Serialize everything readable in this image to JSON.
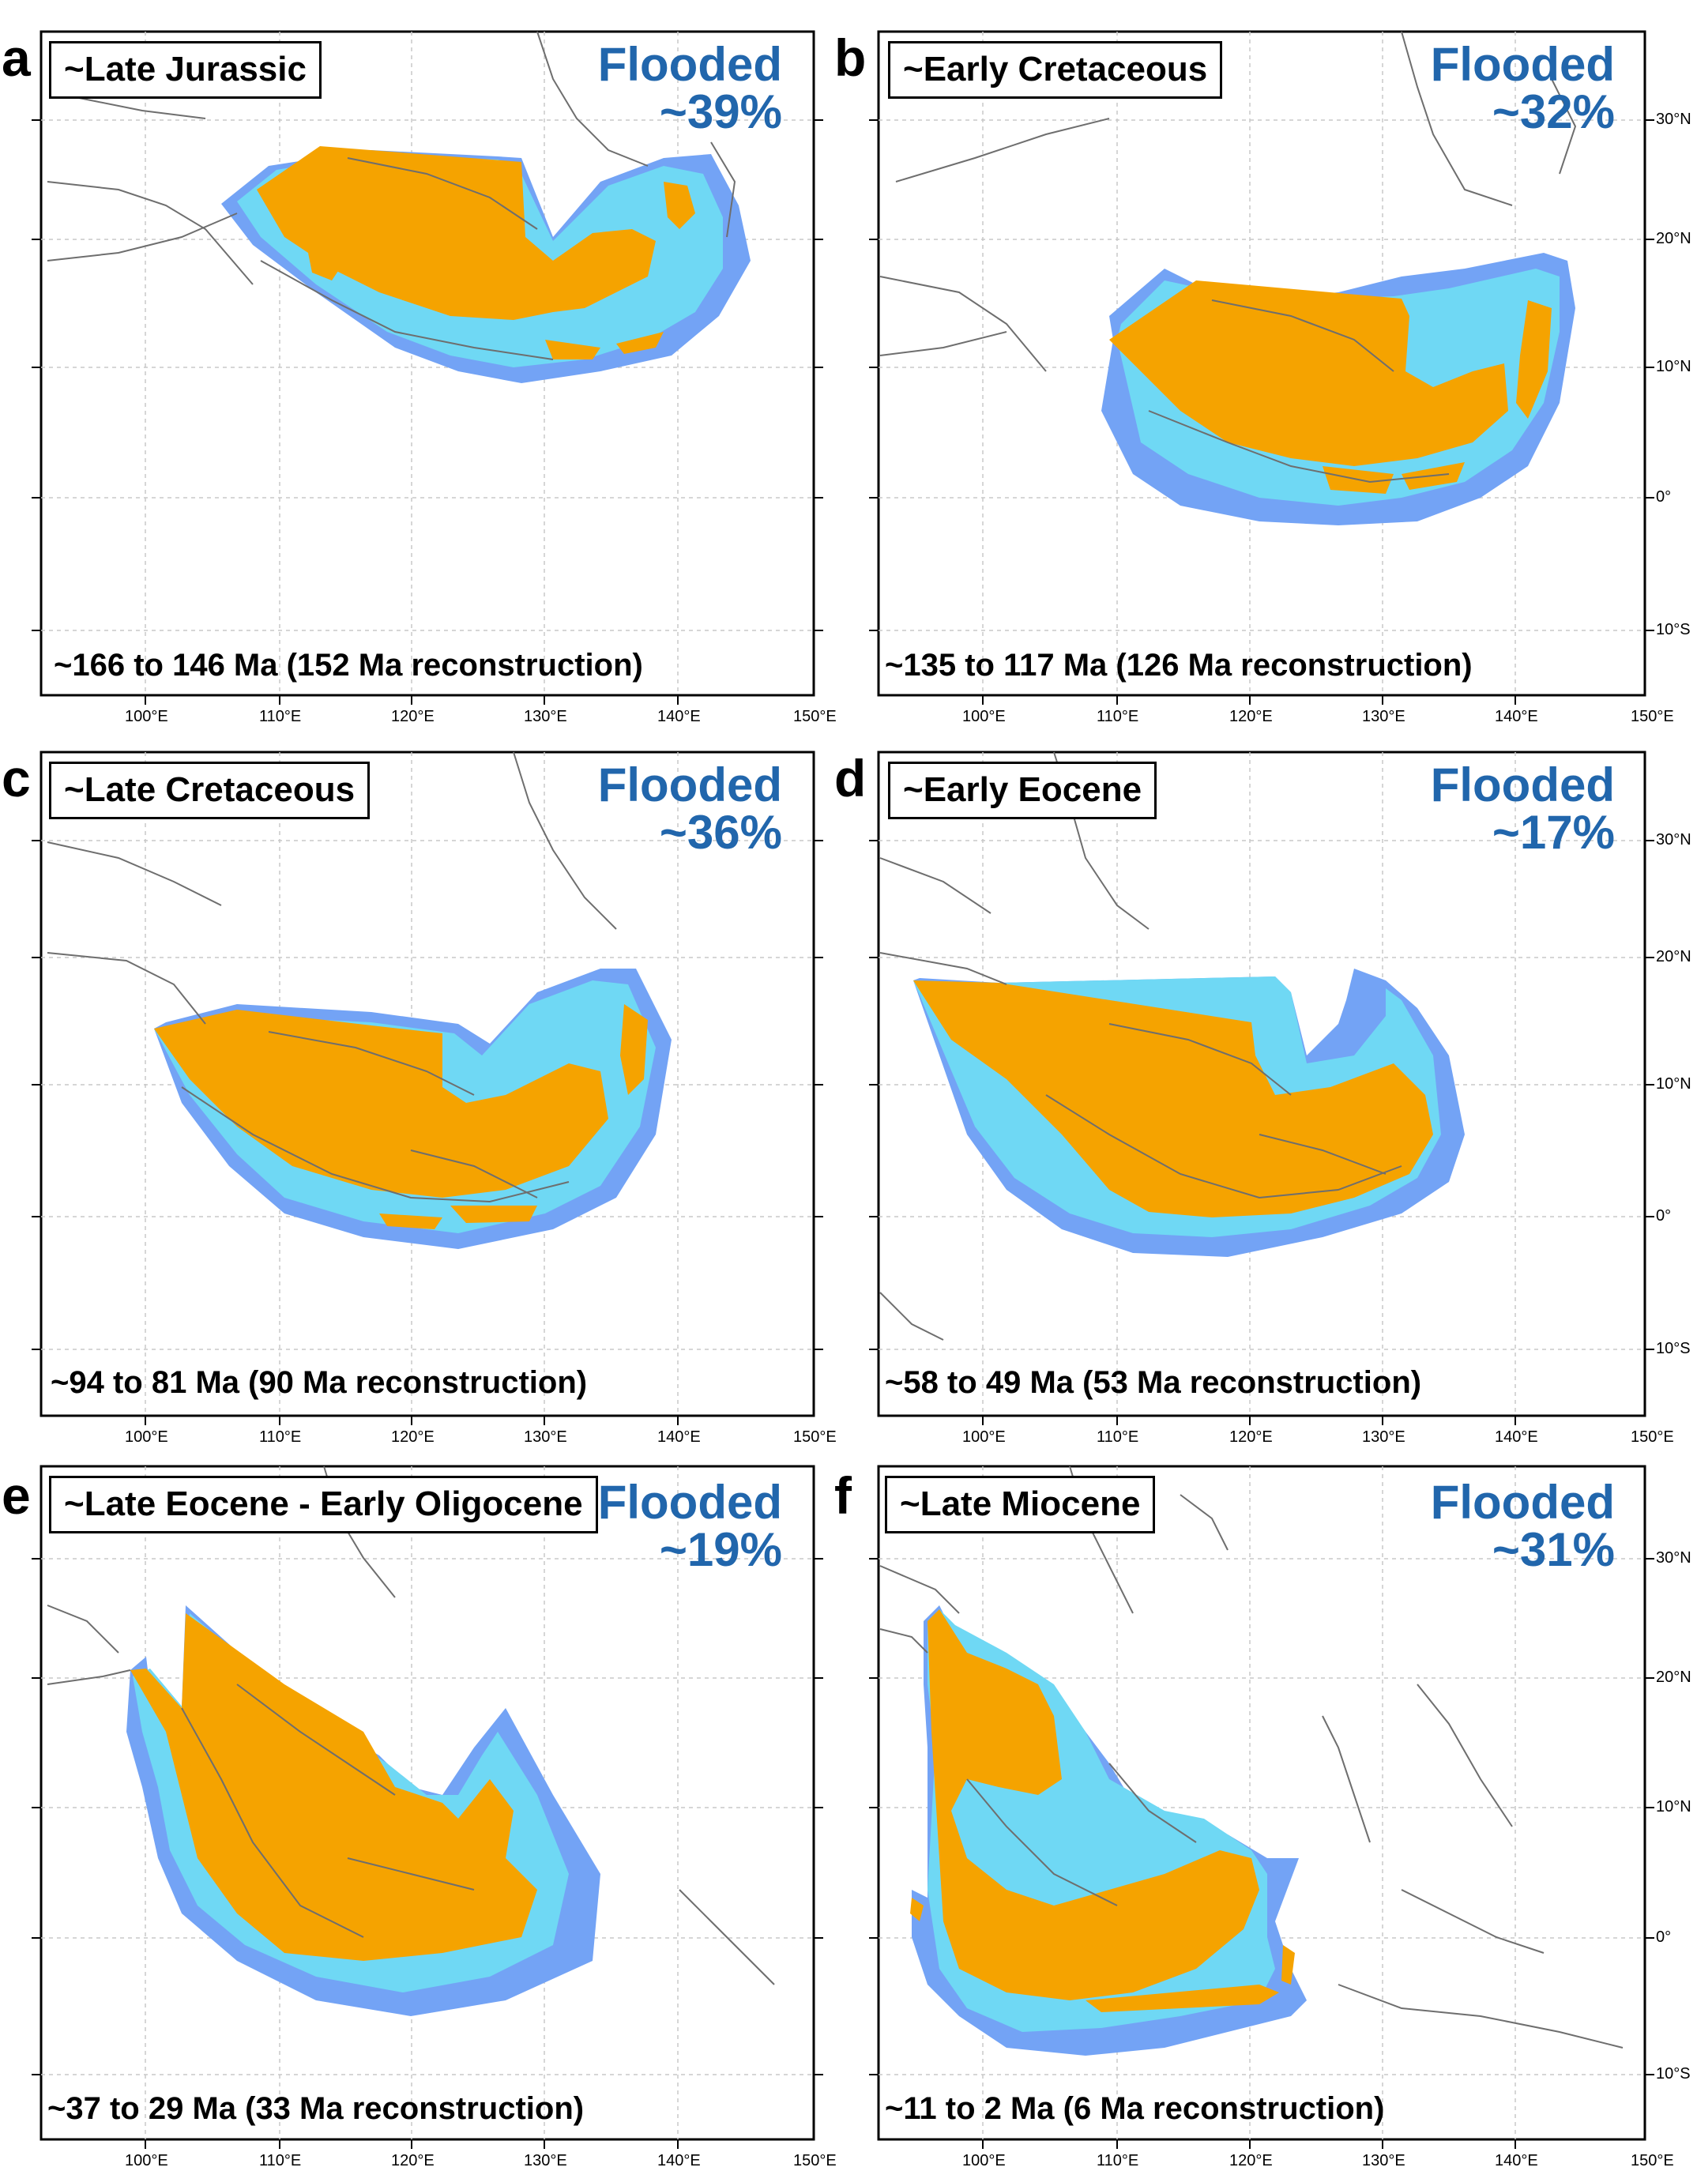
{
  "colors": {
    "land": "#f5a300",
    "shallow_marine": "#6fd8f4",
    "deep_marine": "#73a3f5",
    "flooded_text": "#2166ac",
    "coastline": "#6e6e6e",
    "grid": "#c8c8c8"
  },
  "axes": {
    "lon_ticks": [
      "100°E",
      "110°E",
      "120°E",
      "130°E",
      "140°E",
      "150°E"
    ],
    "lat_ticks": [
      "30°N",
      "20°N",
      "10°N",
      "0°",
      "10°S"
    ]
  },
  "panels": [
    {
      "id": "a",
      "letter": "a",
      "period": "~Late Jurassic",
      "flooded_label": "Flooded",
      "flooded_pct": "~39%",
      "range": "~166 to 146 Ma (152 Ma reconstruction)"
    },
    {
      "id": "b",
      "letter": "b",
      "period": "~Early Cretaceous",
      "flooded_label": "Flooded",
      "flooded_pct": "~32%",
      "range": "~135 to 117 Ma (126 Ma reconstruction)"
    },
    {
      "id": "c",
      "letter": "c",
      "period": "~Late Cretaceous",
      "flooded_label": "Flooded",
      "flooded_pct": "~36%",
      "range": "~94 to 81 Ma (90 Ma reconstruction)"
    },
    {
      "id": "d",
      "letter": "d",
      "period": "~Early Eocene",
      "flooded_label": "Flooded",
      "flooded_pct": "~17%",
      "range": "~58 to 49 Ma (53 Ma reconstruction)"
    },
    {
      "id": "e",
      "letter": "e",
      "period": "~Late Eocene - Early Oligocene",
      "flooded_label": "Flooded",
      "flooded_pct": "~19%",
      "range": "~37 to 29 Ma (33 Ma reconstruction)"
    },
    {
      "id": "f",
      "letter": "f",
      "period": "~Late Miocene",
      "flooded_label": "Flooded",
      "flooded_pct": "~31%",
      "range": "~11 to 2 Ma (6 Ma reconstruction)"
    }
  ]
}
